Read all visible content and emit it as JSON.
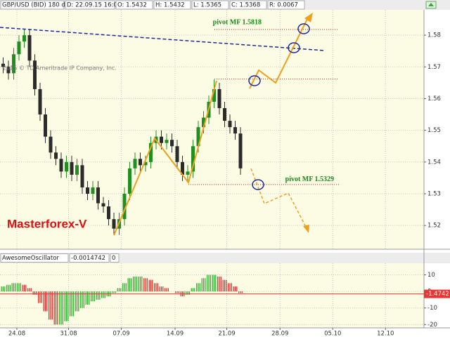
{
  "chart_data": [
    {
      "type": "candlestick",
      "header": [
        "GBP/USD (BID) 180 d 4h",
        "D: 22.09.15 16:00",
        "O: 1.5432",
        "H: 1.5432",
        "L: 1.5365",
        "C: 1.5368",
        "R: 0.0067"
      ],
      "copyright": "2015 © TD Ameritrade IP Company, Inc.",
      "watermark": "Masterforex-V",
      "open": [
        1.571,
        1.57,
        1.568,
        1.574,
        1.578,
        1.58,
        1.572,
        1.563,
        1.555,
        1.548,
        1.543,
        1.541,
        1.537,
        1.54,
        1.536,
        1.539,
        1.532,
        1.53,
        1.532,
        1.527,
        1.526,
        1.522,
        1.519,
        1.522,
        1.53,
        1.538,
        1.541,
        1.539,
        1.54,
        1.546,
        1.548,
        1.546,
        1.547,
        1.545,
        1.54,
        1.536,
        1.537,
        1.545,
        1.551,
        1.554,
        1.559,
        1.563,
        1.557,
        1.553,
        1.551,
        1.549
      ],
      "high": [
        1.573,
        1.572,
        1.576,
        1.58,
        1.582,
        1.582,
        1.574,
        1.565,
        1.557,
        1.55,
        1.545,
        1.543,
        1.542,
        1.542,
        1.541,
        1.541,
        1.534,
        1.534,
        1.534,
        1.529,
        1.528,
        1.524,
        1.524,
        1.532,
        1.54,
        1.543,
        1.543,
        1.542,
        1.548,
        1.55,
        1.55,
        1.549,
        1.549,
        1.547,
        1.542,
        1.539,
        1.547,
        1.553,
        1.556,
        1.561,
        1.566,
        1.565,
        1.559,
        1.555,
        1.553,
        1.551
      ],
      "low": [
        1.568,
        1.566,
        1.566,
        1.572,
        1.576,
        1.57,
        1.561,
        1.553,
        1.546,
        1.541,
        1.539,
        1.535,
        1.535,
        1.534,
        1.534,
        1.53,
        1.528,
        1.528,
        1.525,
        1.524,
        1.52,
        1.517,
        1.517,
        1.52,
        1.528,
        1.536,
        1.537,
        1.537,
        1.538,
        1.544,
        1.544,
        1.544,
        1.543,
        1.538,
        1.534,
        1.534,
        1.535,
        1.543,
        1.549,
        1.552,
        1.557,
        1.555,
        1.551,
        1.549,
        1.547,
        1.536
      ],
      "close": [
        1.57,
        1.568,
        1.574,
        1.578,
        1.58,
        1.572,
        1.563,
        1.555,
        1.548,
        1.543,
        1.541,
        1.537,
        1.54,
        1.536,
        1.539,
        1.532,
        1.53,
        1.532,
        1.527,
        1.526,
        1.522,
        1.519,
        1.522,
        1.53,
        1.538,
        1.541,
        1.539,
        1.54,
        1.546,
        1.548,
        1.546,
        1.547,
        1.545,
        1.54,
        1.536,
        1.537,
        1.545,
        1.551,
        1.554,
        1.559,
        1.563,
        1.557,
        1.553,
        1.551,
        1.549,
        1.538
      ],
      "up_color": "#1f8f1f",
      "down_color": "#2b2b2b",
      "xlim": [
        -0.6,
        79.8
      ],
      "ylim": [
        1.5125,
        1.588
      ],
      "yticks": [
        1.52,
        1.53,
        1.54,
        1.55,
        1.56,
        1.57,
        1.58
      ],
      "grid": true,
      "levels": [
        {
          "value": 1.5818,
          "label": "pivot MF 1.5818"
        },
        {
          "value": 1.5662
        },
        {
          "value": 1.5329,
          "label": "pivot MF 1.5329"
        }
      ]
    },
    {
      "type": "bar",
      "header": [
        "AwesomeOscillator",
        "-0.0014742",
        "0"
      ],
      "values": [
        3,
        4,
        5,
        5,
        4,
        2,
        -2,
        -7,
        -12,
        -17,
        -20,
        -20,
        -18,
        -15,
        -12,
        -10,
        -8,
        -6,
        -5,
        -4,
        -3,
        -1,
        2,
        5,
        8,
        9,
        9,
        8,
        7,
        5,
        3,
        2,
        0,
        -1,
        -3,
        -2,
        2,
        5,
        8,
        10,
        10,
        9,
        7,
        5,
        3,
        -1
      ],
      "up_color": "#22aa22",
      "down_color": "#dd2222",
      "current_value": -1.4742,
      "xlim": [
        -0.6,
        79.8
      ],
      "ylim": [
        -22,
        17
      ],
      "yticks": [
        -20,
        -10,
        0,
        10
      ],
      "xticks": [
        {
          "value": 2.6,
          "label": "24.08"
        },
        {
          "value": 12.4,
          "label": "31.08"
        },
        {
          "value": 22.4,
          "label": "07.09"
        },
        {
          "value": 32.6,
          "label": "14.09"
        },
        {
          "value": 42.4,
          "label": "21.09"
        },
        {
          "value": 52.5,
          "label": "28.09"
        },
        {
          "value": 62.5,
          "label": "05.10"
        },
        {
          "value": 72.5,
          "label": "12.10"
        }
      ],
      "grid": true
    }
  ]
}
